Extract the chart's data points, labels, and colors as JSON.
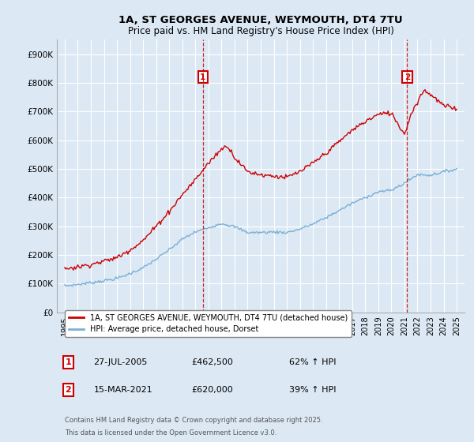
{
  "title": "1A, ST GEORGES AVENUE, WEYMOUTH, DT4 7TU",
  "subtitle": "Price paid vs. HM Land Registry's House Price Index (HPI)",
  "background_color": "#dce9f5",
  "plot_bg_color": "#dce9f5",
  "bottom_bg_color": "#ffffff",
  "red_line_color": "#cc0000",
  "blue_line_color": "#7bafd4",
  "grid_color": "#ffffff",
  "sale1_date": "27-JUL-2005",
  "sale1_price": 462500,
  "sale1_hpi": "62% ↑ HPI",
  "sale2_date": "15-MAR-2021",
  "sale2_price": 620000,
  "sale2_hpi": "39% ↑ HPI",
  "legend_red": "1A, ST GEORGES AVENUE, WEYMOUTH, DT4 7TU (detached house)",
  "legend_blue": "HPI: Average price, detached house, Dorset",
  "footnote1": "Contains HM Land Registry data © Crown copyright and database right 2025.",
  "footnote2": "This data is licensed under the Open Government Licence v3.0.",
  "ylim": [
    0,
    950000
  ],
  "yticks": [
    0,
    100000,
    200000,
    300000,
    400000,
    500000,
    600000,
    700000,
    800000,
    900000
  ],
  "sale1_year": 2005.57,
  "sale2_year": 2021.21,
  "hpi_anchors_x": [
    1995,
    1996,
    1997,
    1998,
    1999,
    2000,
    2001,
    2002,
    2003,
    2004,
    2005,
    2006,
    2007,
    2008,
    2009,
    2010,
    2011,
    2012,
    2013,
    2014,
    2015,
    2016,
    2017,
    2018,
    2019,
    2020,
    2021,
    2022,
    2023,
    2024,
    2025
  ],
  "hpi_anchors_y": [
    92000,
    97000,
    103000,
    110000,
    118000,
    135000,
    155000,
    185000,
    218000,
    255000,
    280000,
    295000,
    310000,
    298000,
    278000,
    278000,
    280000,
    278000,
    290000,
    308000,
    330000,
    355000,
    380000,
    400000,
    420000,
    425000,
    450000,
    480000,
    478000,
    490000,
    500000
  ],
  "red_anchors_x": [
    1995,
    1996,
    1997,
    1998,
    1999,
    2000,
    2001,
    2002,
    2003,
    2004,
    2005,
    2006,
    2007,
    2007.5,
    2008,
    2009,
    2010,
    2011,
    2012,
    2013,
    2014,
    2015,
    2016,
    2017,
    2018,
    2019,
    2020,
    2021,
    2021.5,
    2022,
    2022.5,
    2023,
    2024,
    2025
  ],
  "red_anchors_y": [
    152000,
    158000,
    167000,
    178000,
    191000,
    218000,
    250000,
    300000,
    352000,
    410000,
    462500,
    520000,
    570000,
    580000,
    540000,
    490000,
    480000,
    475000,
    470000,
    490000,
    520000,
    555000,
    595000,
    635000,
    665000,
    690000,
    695000,
    620000,
    690000,
    735000,
    775000,
    760000,
    720000,
    710000
  ]
}
